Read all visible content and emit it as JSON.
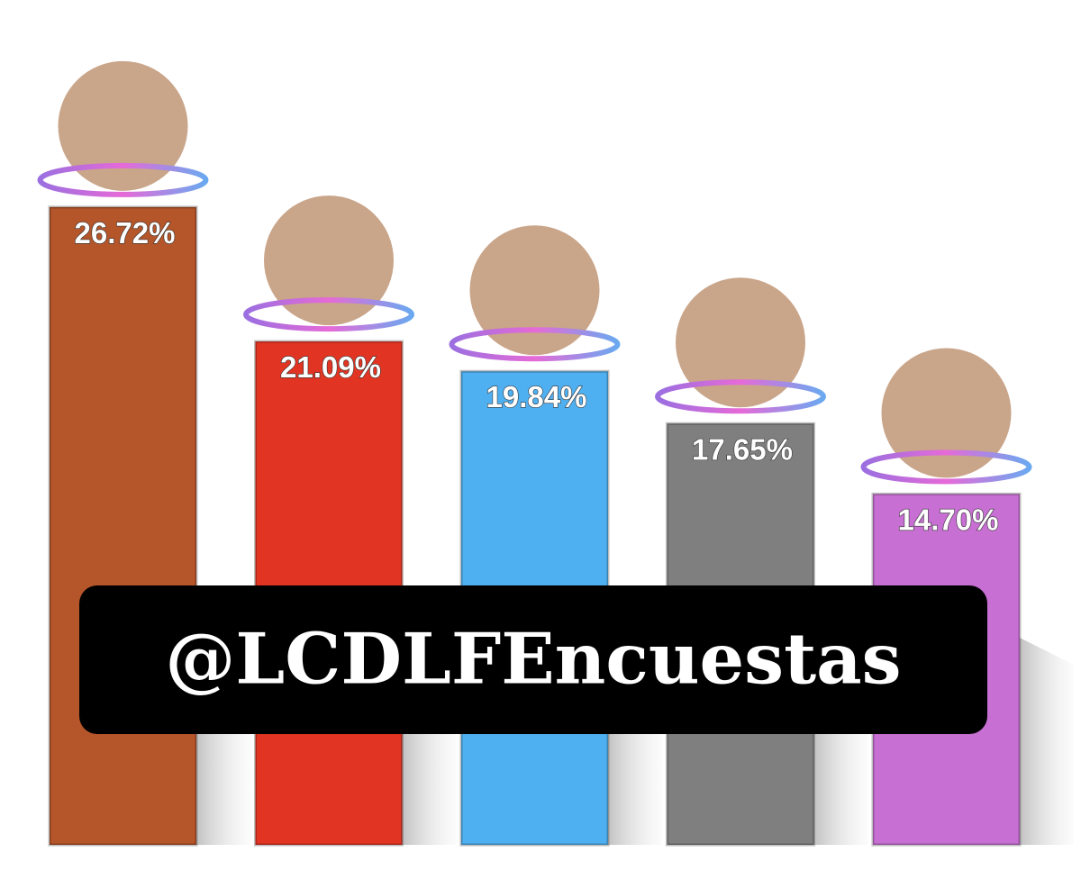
{
  "chart_data": {
    "type": "bar",
    "categories": [
      null,
      null,
      null,
      null,
      null
    ],
    "values": [
      26.72,
      21.09,
      19.84,
      17.65,
      14.7
    ],
    "value_labels": [
      "26.72%",
      "21.09%",
      "19.84%",
      "17.65%",
      "14.70%"
    ],
    "colors": [
      "#b5552a",
      "#e23423",
      "#4fb0f1",
      "#7f7f7f",
      "#c76fd2"
    ],
    "annotation": "@LCDLFEncuestas"
  }
}
